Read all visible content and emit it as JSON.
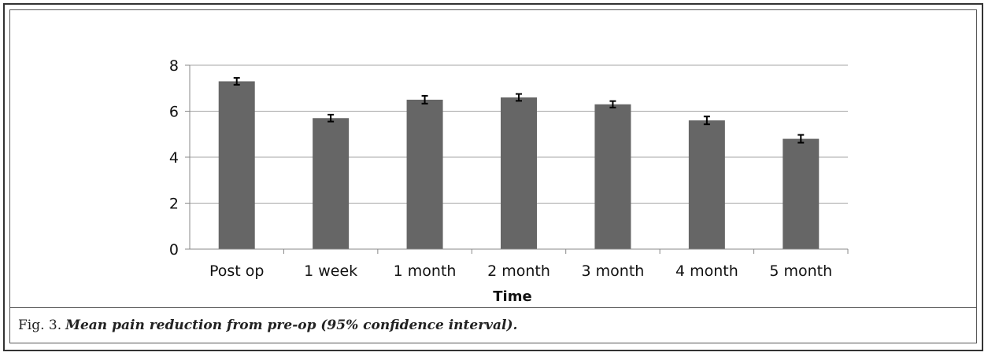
{
  "caption": {
    "number": "Fig. 3.",
    "text": "Mean pain reduction from pre-op (95% confidence interval)."
  },
  "chart_data": {
    "type": "bar",
    "title": "",
    "xlabel": "Time",
    "ylabel": "",
    "ylim": [
      0,
      8
    ],
    "yticks": [
      0,
      2,
      4,
      6,
      8
    ],
    "grid": true,
    "legend": "none",
    "categories": [
      "Post op",
      "1 week",
      "1 month",
      "2 month",
      "3 month",
      "4 month",
      "5 month"
    ],
    "series": [
      {
        "values": [
          7.3,
          5.7,
          6.5,
          6.6,
          6.3,
          5.6,
          4.8
        ],
        "error": [
          0.15,
          0.15,
          0.17,
          0.15,
          0.14,
          0.17,
          0.17
        ]
      }
    ],
    "colors": {
      "bar": "#666666",
      "grid": "#a6a6a6",
      "axis": "#888888",
      "errorbar": "#000000"
    }
  }
}
